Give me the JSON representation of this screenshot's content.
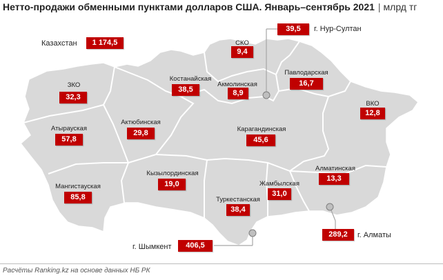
{
  "title": "Нетто-продажи обменными пунктами долларов США. Январь–сентябрь 2021",
  "separator": "|",
  "unit": "млрд тг",
  "national": {
    "label": "Казахстан",
    "value": "1 174,5"
  },
  "regions": [
    {
      "id": "sko",
      "name": "СКО",
      "value": "9,4"
    },
    {
      "id": "zko",
      "name": "ЗКО",
      "value": "32,3"
    },
    {
      "id": "kostanai",
      "name": "Костанайская",
      "value": "38,5"
    },
    {
      "id": "akmola",
      "name": "Акмолинская",
      "value": "8,9"
    },
    {
      "id": "pavlodar",
      "name": "Павлодарская",
      "value": "16,7"
    },
    {
      "id": "vko",
      "name": "ВКО",
      "value": "12,8"
    },
    {
      "id": "atyrau",
      "name": "Атырауская",
      "value": "57,8"
    },
    {
      "id": "aktobe",
      "name": "Актюбинская",
      "value": "29,8"
    },
    {
      "id": "karaganda",
      "name": "Карагандинская",
      "value": "45,6"
    },
    {
      "id": "kyzylorda",
      "name": "Кызылординская",
      "value": "19,0"
    },
    {
      "id": "almaty_reg",
      "name": "Алматинская",
      "value": "13,3"
    },
    {
      "id": "mangystau",
      "name": "Мангистауская",
      "value": "85,8"
    },
    {
      "id": "zhambyl",
      "name": "Жамбылская",
      "value": "31,0"
    },
    {
      "id": "turkestan",
      "name": "Туркестанская",
      "value": "38,4"
    }
  ],
  "cities": [
    {
      "id": "nursultan",
      "name": "г. Нур-Султан",
      "value": "39,5"
    },
    {
      "id": "shymkent",
      "name": "г. Шымкент",
      "value": "406,5"
    },
    {
      "id": "almaty",
      "name": "г. Алматы",
      "value": "289,2"
    }
  ],
  "footer": "Расчёты Ranking.kz на основе данных НБ РК",
  "colors": {
    "value_box": "#c00000",
    "map_fill": "#d9d9d9",
    "border": "#ffffff",
    "marker": "#a6a6a6"
  }
}
